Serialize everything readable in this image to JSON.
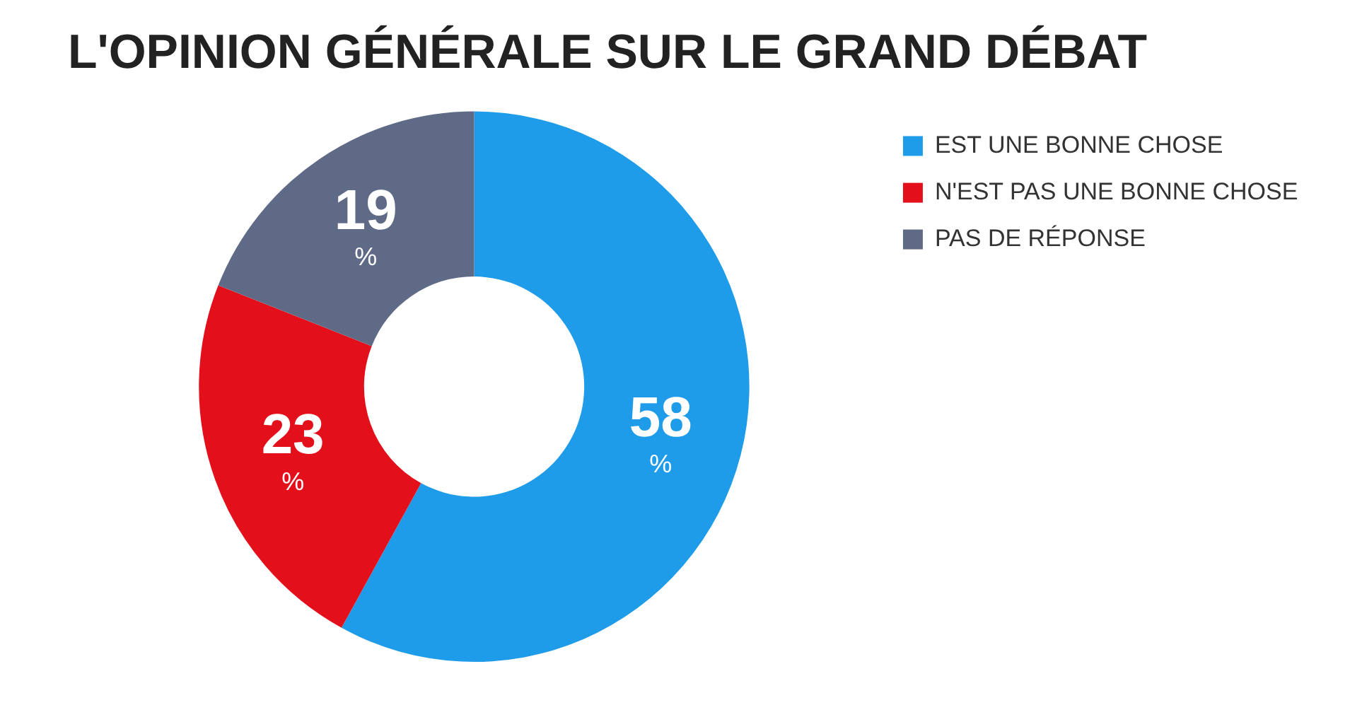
{
  "chart_data": {
    "type": "donut",
    "title": "L'OPINION GÉNÉRALE SUR LE GRAND DÉBAT",
    "categories": [
      "EST UNE BONNE CHOSE",
      "N'EST PAS UNE BONNE CHOSE",
      "PAS DE RÉPONSE"
    ],
    "values": [
      58,
      23,
      19
    ],
    "colors": [
      "#1e9be9",
      "#e3101c",
      "#5f6a86"
    ],
    "value_labels": [
      "58 %",
      "23 %",
      "19 %"
    ],
    "legend": "right"
  }
}
